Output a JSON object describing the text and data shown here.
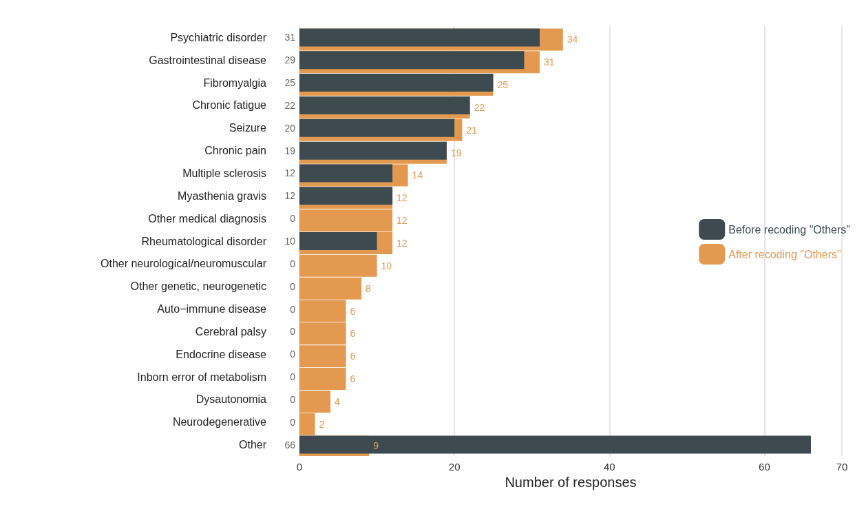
{
  "chart_data": {
    "type": "bar",
    "orientation": "horizontal",
    "xlabel": "Number of responses",
    "categories": [
      "Psychiatric disorder",
      "Gastrointestinal disease",
      "Fibromyalgia",
      "Chronic fatigue",
      "Seizure",
      "Chronic pain",
      "Multiple sclerosis",
      "Myasthenia gravis",
      "Other medical diagnosis",
      "Rheumatological disorder",
      "Other neurological/neuromuscular",
      "Other genetic, neurogenetic",
      "Auto−immune disease",
      "Cerebral palsy",
      "Endocrine disease",
      "Inborn error of metabolism",
      "Dysautonomia",
      "Neurodegenerative",
      "Other"
    ],
    "series": [
      {
        "name": "Before recoding \"Others\"",
        "color": "#3d4a4f",
        "values": [
          31,
          29,
          25,
          22,
          20,
          19,
          12,
          12,
          0,
          10,
          0,
          0,
          0,
          0,
          0,
          0,
          0,
          0,
          66
        ]
      },
      {
        "name": "After recoding \"Others\"",
        "color": "#e39a50",
        "values": [
          34,
          31,
          25,
          22,
          21,
          19,
          14,
          12,
          12,
          12,
          10,
          8,
          6,
          6,
          6,
          6,
          4,
          2,
          9
        ]
      }
    ],
    "xlim": [
      0,
      70
    ],
    "xticks": [
      0,
      20,
      40,
      60,
      70
    ],
    "grid": "x",
    "legend": "right",
    "data_labels": true
  }
}
